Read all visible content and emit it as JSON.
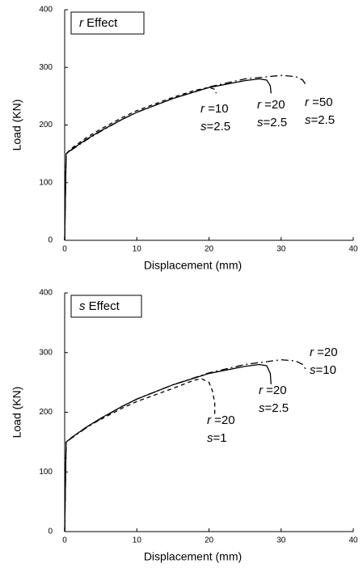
{
  "chart_data": [
    {
      "type": "line",
      "title": "r Effect",
      "xlabel": "Displacement (mm)",
      "ylabel": "Load (KN)",
      "xlim": [
        0,
        40
      ],
      "ylim": [
        0,
        400
      ],
      "xticks": [
        0,
        10,
        20,
        30,
        40
      ],
      "yticks": [
        0,
        100,
        200,
        300,
        400
      ],
      "series": [
        {
          "label": [
            "r =10",
            "s=2.5"
          ],
          "color": "#000000",
          "style": "dashed",
          "x": [
            0,
            0.2,
            1,
            3,
            5,
            8,
            10,
            15,
            18,
            20,
            20.8,
            21
          ],
          "values": [
            0,
            150,
            160,
            178,
            193,
            213,
            225,
            248,
            260,
            265,
            262,
            255
          ]
        },
        {
          "label": [
            "r =20",
            "s=2.5"
          ],
          "color": "#000000",
          "style": "solid",
          "x": [
            0,
            0.2,
            1,
            3,
            5,
            8,
            10,
            15,
            20,
            25,
            27,
            28,
            28.5,
            28.6
          ],
          "values": [
            0,
            150,
            158,
            175,
            190,
            210,
            222,
            246,
            265,
            277,
            280,
            278,
            268,
            255
          ]
        },
        {
          "label": [
            "r =50",
            "s=2.5"
          ],
          "color": "#000000",
          "style": "dashdot",
          "x": [
            0,
            0.2,
            1,
            3,
            5,
            8,
            10,
            15,
            20,
            25,
            30,
            32,
            33,
            33.5
          ],
          "values": [
            0,
            150,
            157,
            174,
            189,
            210,
            222,
            246,
            266,
            280,
            286,
            284,
            278,
            268
          ]
        }
      ]
    },
    {
      "type": "line",
      "title": "s Effect",
      "xlabel": "Displacement (mm)",
      "ylabel": "Load (KN)",
      "xlim": [
        0,
        40
      ],
      "ylim": [
        0,
        400
      ],
      "xticks": [
        0,
        10,
        20,
        30,
        40
      ],
      "yticks": [
        0,
        100,
        200,
        300,
        400
      ],
      "series": [
        {
          "label": [
            "r =20",
            "s=1"
          ],
          "color": "#000000",
          "style": "dashed",
          "x": [
            0,
            0.2,
            1,
            3,
            5,
            8,
            10,
            15,
            18,
            19,
            20,
            20.5,
            20.8,
            20.8
          ],
          "values": [
            0,
            150,
            158,
            175,
            188,
            207,
            218,
            240,
            254,
            256,
            250,
            235,
            215,
            195
          ]
        },
        {
          "label": [
            "r =20",
            "s=2.5"
          ],
          "color": "#000000",
          "style": "solid",
          "x": [
            0,
            0.2,
            1,
            3,
            5,
            8,
            10,
            15,
            20,
            25,
            27,
            28,
            28.5,
            28.6
          ],
          "values": [
            0,
            150,
            158,
            175,
            190,
            210,
            222,
            246,
            265,
            277,
            280,
            278,
            265,
            247
          ]
        },
        {
          "label": [
            "r =20",
            "s=10"
          ],
          "color": "#000000",
          "style": "dashdot",
          "x": [
            0,
            0.2,
            1,
            3,
            5,
            8,
            10,
            15,
            20,
            25,
            30,
            32,
            33,
            33.5
          ],
          "values": [
            0,
            150,
            157,
            174,
            189,
            210,
            222,
            246,
            266,
            280,
            288,
            286,
            280,
            270
          ]
        }
      ]
    }
  ]
}
